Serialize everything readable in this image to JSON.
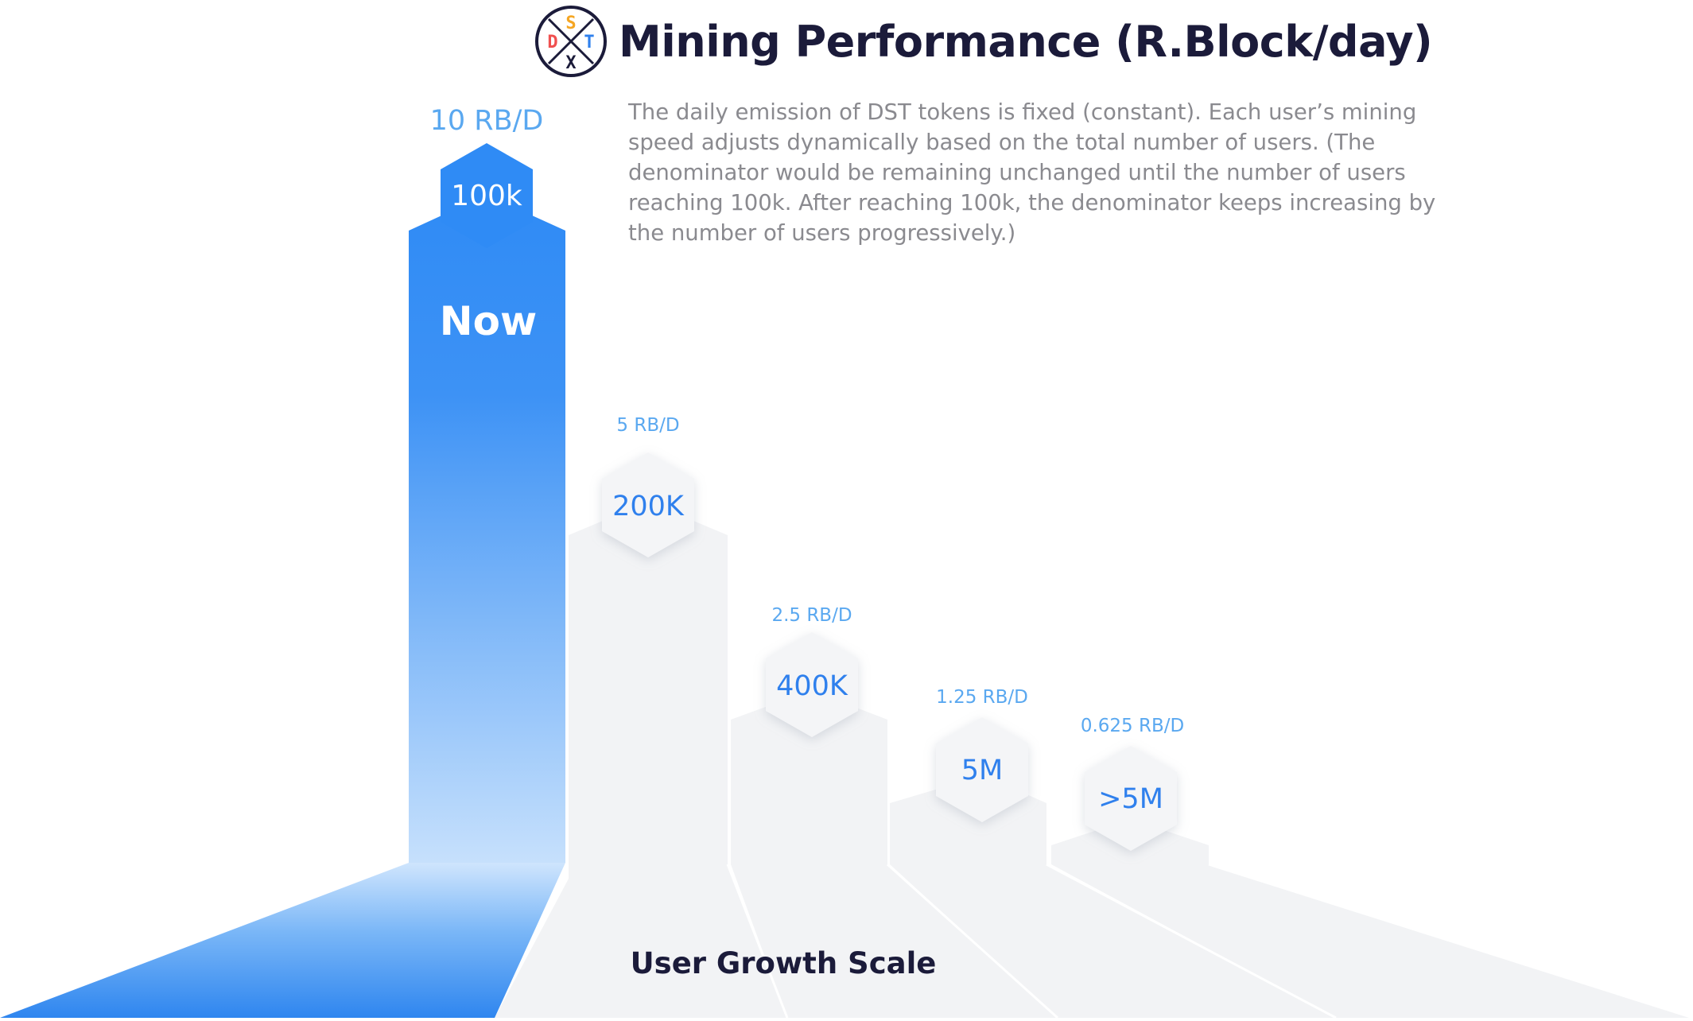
{
  "title": "Mining Performance (R.Block/day)",
  "logo": {
    "letters": [
      "D",
      "S",
      "T",
      "X"
    ],
    "colors": {
      "D": "#f0504f",
      "S": "#f5a623",
      "T": "#2f80ed",
      "X": "#1b1b3a"
    }
  },
  "description": "The daily emission of DST tokens is fixed (constant). Each user’s mining speed adjusts dynamically based on the total number of users. (The denominator would be remaining unchanged until the number of users reaching 100k. After reaching 100k, the denominator keeps increasing by the number of users progressively.)",
  "axis_label": "User Growth Scale",
  "current_stage": {
    "users": "100k",
    "rate": "10 RB/D",
    "label": "Now"
  },
  "stages": [
    {
      "users": "200K",
      "rate": "5 RB/D"
    },
    {
      "users": "400K",
      "rate": "2.5 RB/D"
    },
    {
      "users": "5M",
      "rate": "1.25 RB/D"
    },
    {
      "users": ">5M",
      "rate": "0.625 RB/D"
    }
  ],
  "colors": {
    "accent": "#2f8bf5",
    "rate_text": "#5aa8f0",
    "stage_fill": "#f2f3f5",
    "hex_fill": "#f4f5f7",
    "title": "#1b1b3a",
    "description": "#8a8a8f"
  }
}
